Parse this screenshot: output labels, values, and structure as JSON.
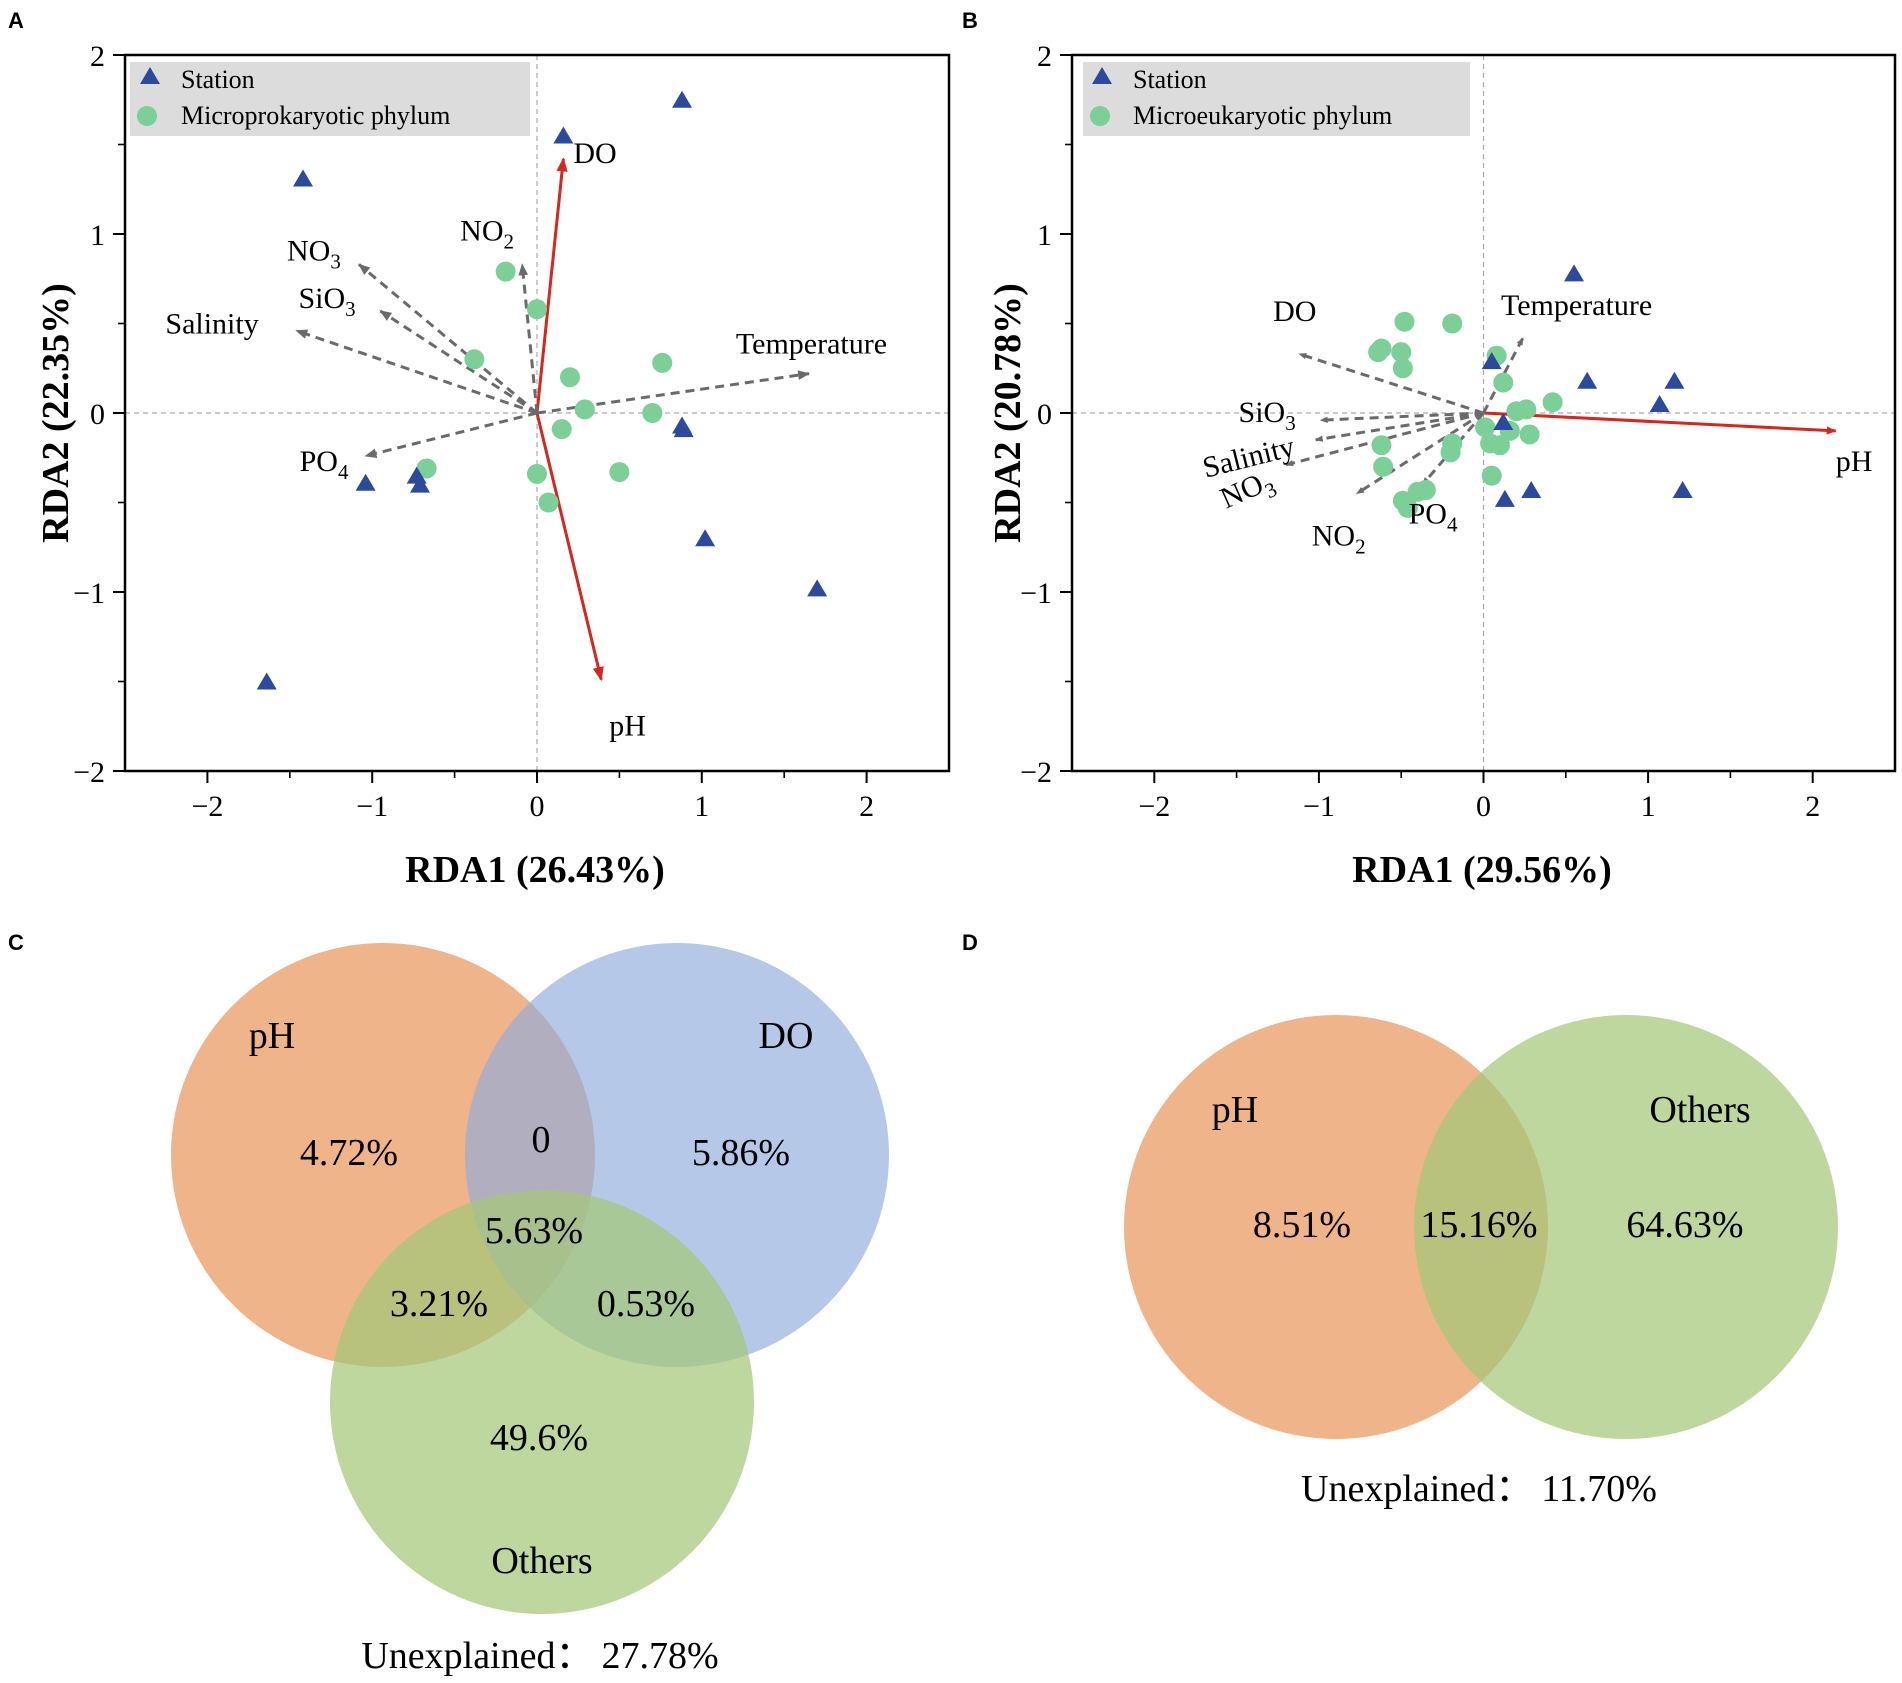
{
  "colors": {
    "station": "#2b4a9c",
    "phylum": "#7ccf97",
    "sig_arrow": "#d7261e",
    "env_arrow": "#6a6a6a",
    "legend_bg": "#dcdcdc",
    "venn_ph": "#eb9b63",
    "venn_do": "#8eaadb",
    "venn_others": "#a4c878"
  },
  "chart_data": [
    {
      "panel": "A",
      "type": "scatter",
      "subtype": "rda-biplot",
      "xlabel": "RDA1 (26.43%)",
      "ylabel": "RDA2 (22.35%)",
      "xlim": [
        -2.5,
        2.5
      ],
      "ylim": [
        -2,
        2
      ],
      "xticks": [
        -2,
        -1,
        0,
        1,
        2
      ],
      "yticks": [
        -2,
        -1,
        0,
        1,
        2
      ],
      "xtick_labels": [
        "−2",
        "−1",
        "0",
        "1",
        "2"
      ],
      "ytick_labels": [
        "−2",
        "−1",
        "0",
        "1",
        "2"
      ],
      "legend": [
        {
          "label": "Station",
          "marker": "triangle"
        },
        {
          "label": "Microprokaryotic phylum",
          "marker": "circle"
        }
      ],
      "stations": [
        [
          0.88,
          1.75
        ],
        [
          0.16,
          1.55
        ],
        [
          -1.42,
          1.31
        ],
        [
          0.88,
          -0.07
        ],
        [
          0.89,
          -0.09
        ],
        [
          -1.04,
          -0.39
        ],
        [
          -0.73,
          -0.35
        ],
        [
          -0.71,
          -0.4
        ],
        [
          1.02,
          -0.7
        ],
        [
          1.7,
          -0.98
        ],
        [
          -1.64,
          -1.5
        ]
      ],
      "phyla": [
        [
          -0.19,
          0.79
        ],
        [
          0.0,
          0.58
        ],
        [
          -0.38,
          0.3
        ],
        [
          0.2,
          0.2
        ],
        [
          0.76,
          0.28
        ],
        [
          0.29,
          0.02
        ],
        [
          0.7,
          0.0
        ],
        [
          0.15,
          -0.09
        ],
        [
          -0.67,
          -0.31
        ],
        [
          0.0,
          -0.34
        ],
        [
          0.5,
          -0.33
        ],
        [
          0.07,
          -0.5
        ]
      ],
      "arrows": [
        {
          "label": "DO",
          "sub": "",
          "to": [
            0.16,
            1.42
          ],
          "significant": true
        },
        {
          "label": "pH",
          "sub": "",
          "to": [
            0.39,
            -1.49
          ],
          "significant": true
        },
        {
          "label": "NO",
          "sub": "2",
          "to": [
            -0.09,
            0.83
          ],
          "significant": false
        },
        {
          "label": "NO",
          "sub": "3",
          "to": [
            -1.08,
            0.83
          ],
          "significant": false
        },
        {
          "label": "SiO",
          "sub": "3",
          "to": [
            -0.95,
            0.57
          ],
          "significant": false
        },
        {
          "label": "Salinity",
          "sub": "",
          "to": [
            -1.46,
            0.46
          ],
          "significant": false
        },
        {
          "label": "Temperature",
          "sub": "",
          "to": [
            1.65,
            0.22
          ],
          "significant": false
        },
        {
          "label": "PO",
          "sub": "4",
          "to": [
            -1.04,
            -0.24
          ],
          "significant": false
        }
      ]
    },
    {
      "panel": "B",
      "type": "scatter",
      "subtype": "rda-biplot",
      "xlabel": "RDA1 (29.56%)",
      "ylabel": "RDA2 (20.78%)",
      "xlim": [
        -2.5,
        2.5
      ],
      "ylim": [
        -2,
        2
      ],
      "xticks": [
        -2,
        -1,
        0,
        1,
        2
      ],
      "yticks": [
        -2,
        -1,
        0,
        1,
        2
      ],
      "xtick_labels": [
        "−2",
        "−1",
        "0",
        "1",
        "2"
      ],
      "ytick_labels": [
        "−2",
        "−1",
        "0",
        "1",
        "2"
      ],
      "legend": [
        {
          "label": "Station",
          "marker": "triangle"
        },
        {
          "label": "Microeukaryotic phylum",
          "marker": "circle"
        }
      ],
      "stations": [
        [
          0.55,
          0.78
        ],
        [
          0.05,
          0.29
        ],
        [
          0.63,
          0.18
        ],
        [
          1.16,
          0.18
        ],
        [
          1.07,
          0.05
        ],
        [
          0.12,
          -0.05
        ],
        [
          1.21,
          -0.43
        ],
        [
          0.29,
          -0.43
        ],
        [
          0.13,
          -0.48
        ]
      ],
      "phyla": [
        [
          -0.48,
          0.51
        ],
        [
          -0.19,
          0.5
        ],
        [
          -0.64,
          0.34
        ],
        [
          -0.62,
          0.36
        ],
        [
          -0.5,
          0.34
        ],
        [
          -0.49,
          0.25
        ],
        [
          0.08,
          0.32
        ],
        [
          0.12,
          0.17
        ],
        [
          0.42,
          0.06
        ],
        [
          0.2,
          0.01
        ],
        [
          0.26,
          0.02
        ],
        [
          0.01,
          -0.08
        ],
        [
          0.16,
          -0.1
        ],
        [
          0.28,
          -0.12
        ],
        [
          0.04,
          -0.17
        ],
        [
          0.1,
          -0.18
        ],
        [
          -0.19,
          -0.17
        ],
        [
          -0.62,
          -0.18
        ],
        [
          -0.2,
          -0.22
        ],
        [
          -0.61,
          -0.3
        ],
        [
          0.05,
          -0.35
        ],
        [
          -0.35,
          -0.43
        ],
        [
          -0.4,
          -0.44
        ],
        [
          -0.49,
          -0.49
        ],
        [
          -0.46,
          -0.53
        ]
      ],
      "arrows": [
        {
          "label": "pH",
          "sub": "",
          "to": [
            2.14,
            -0.1
          ],
          "significant": true
        },
        {
          "label": "DO",
          "sub": "",
          "to": [
            -1.12,
            0.33
          ],
          "significant": false
        },
        {
          "label": "Temperature",
          "sub": "",
          "to": [
            0.24,
            0.42
          ],
          "significant": false
        },
        {
          "label": "SiO",
          "sub": "3",
          "to": [
            -0.99,
            -0.04
          ],
          "significant": false
        },
        {
          "label": "Salinity",
          "sub": "",
          "to": [
            -1.02,
            -0.15
          ],
          "significant": false
        },
        {
          "label": "NO",
          "sub": "3",
          "to": [
            -1.2,
            -0.29
          ],
          "significant": false
        },
        {
          "label": "NO",
          "sub": "2",
          "to": [
            -0.77,
            -0.45
          ],
          "significant": false
        },
        {
          "label": "PO",
          "sub": "4",
          "to": [
            -0.37,
            -0.4
          ],
          "significant": false
        }
      ]
    },
    {
      "panel": "C",
      "type": "venn",
      "sets": [
        {
          "name": "pH",
          "color": "venn_ph"
        },
        {
          "name": "DO",
          "color": "venn_do"
        },
        {
          "name": "Others",
          "color": "venn_others"
        }
      ],
      "regions": {
        "pH_only": "4.72%",
        "DO_only": "5.86%",
        "pH_DO": "0",
        "all": "5.63%",
        "pH_Others": "3.21%",
        "DO_Others": "0.53%",
        "Others_only": "49.6%"
      },
      "unexplained_label": "Unexplained：",
      "unexplained_value": "27.78%"
    },
    {
      "panel": "D",
      "type": "venn",
      "sets": [
        {
          "name": "pH",
          "color": "venn_ph"
        },
        {
          "name": "Others",
          "color": "venn_others"
        }
      ],
      "regions": {
        "pH_only": "8.51%",
        "pH_Others": "15.16%",
        "Others_only": "64.63%"
      },
      "unexplained_label": "Unexplained：",
      "unexplained_value": "11.70%"
    }
  ]
}
